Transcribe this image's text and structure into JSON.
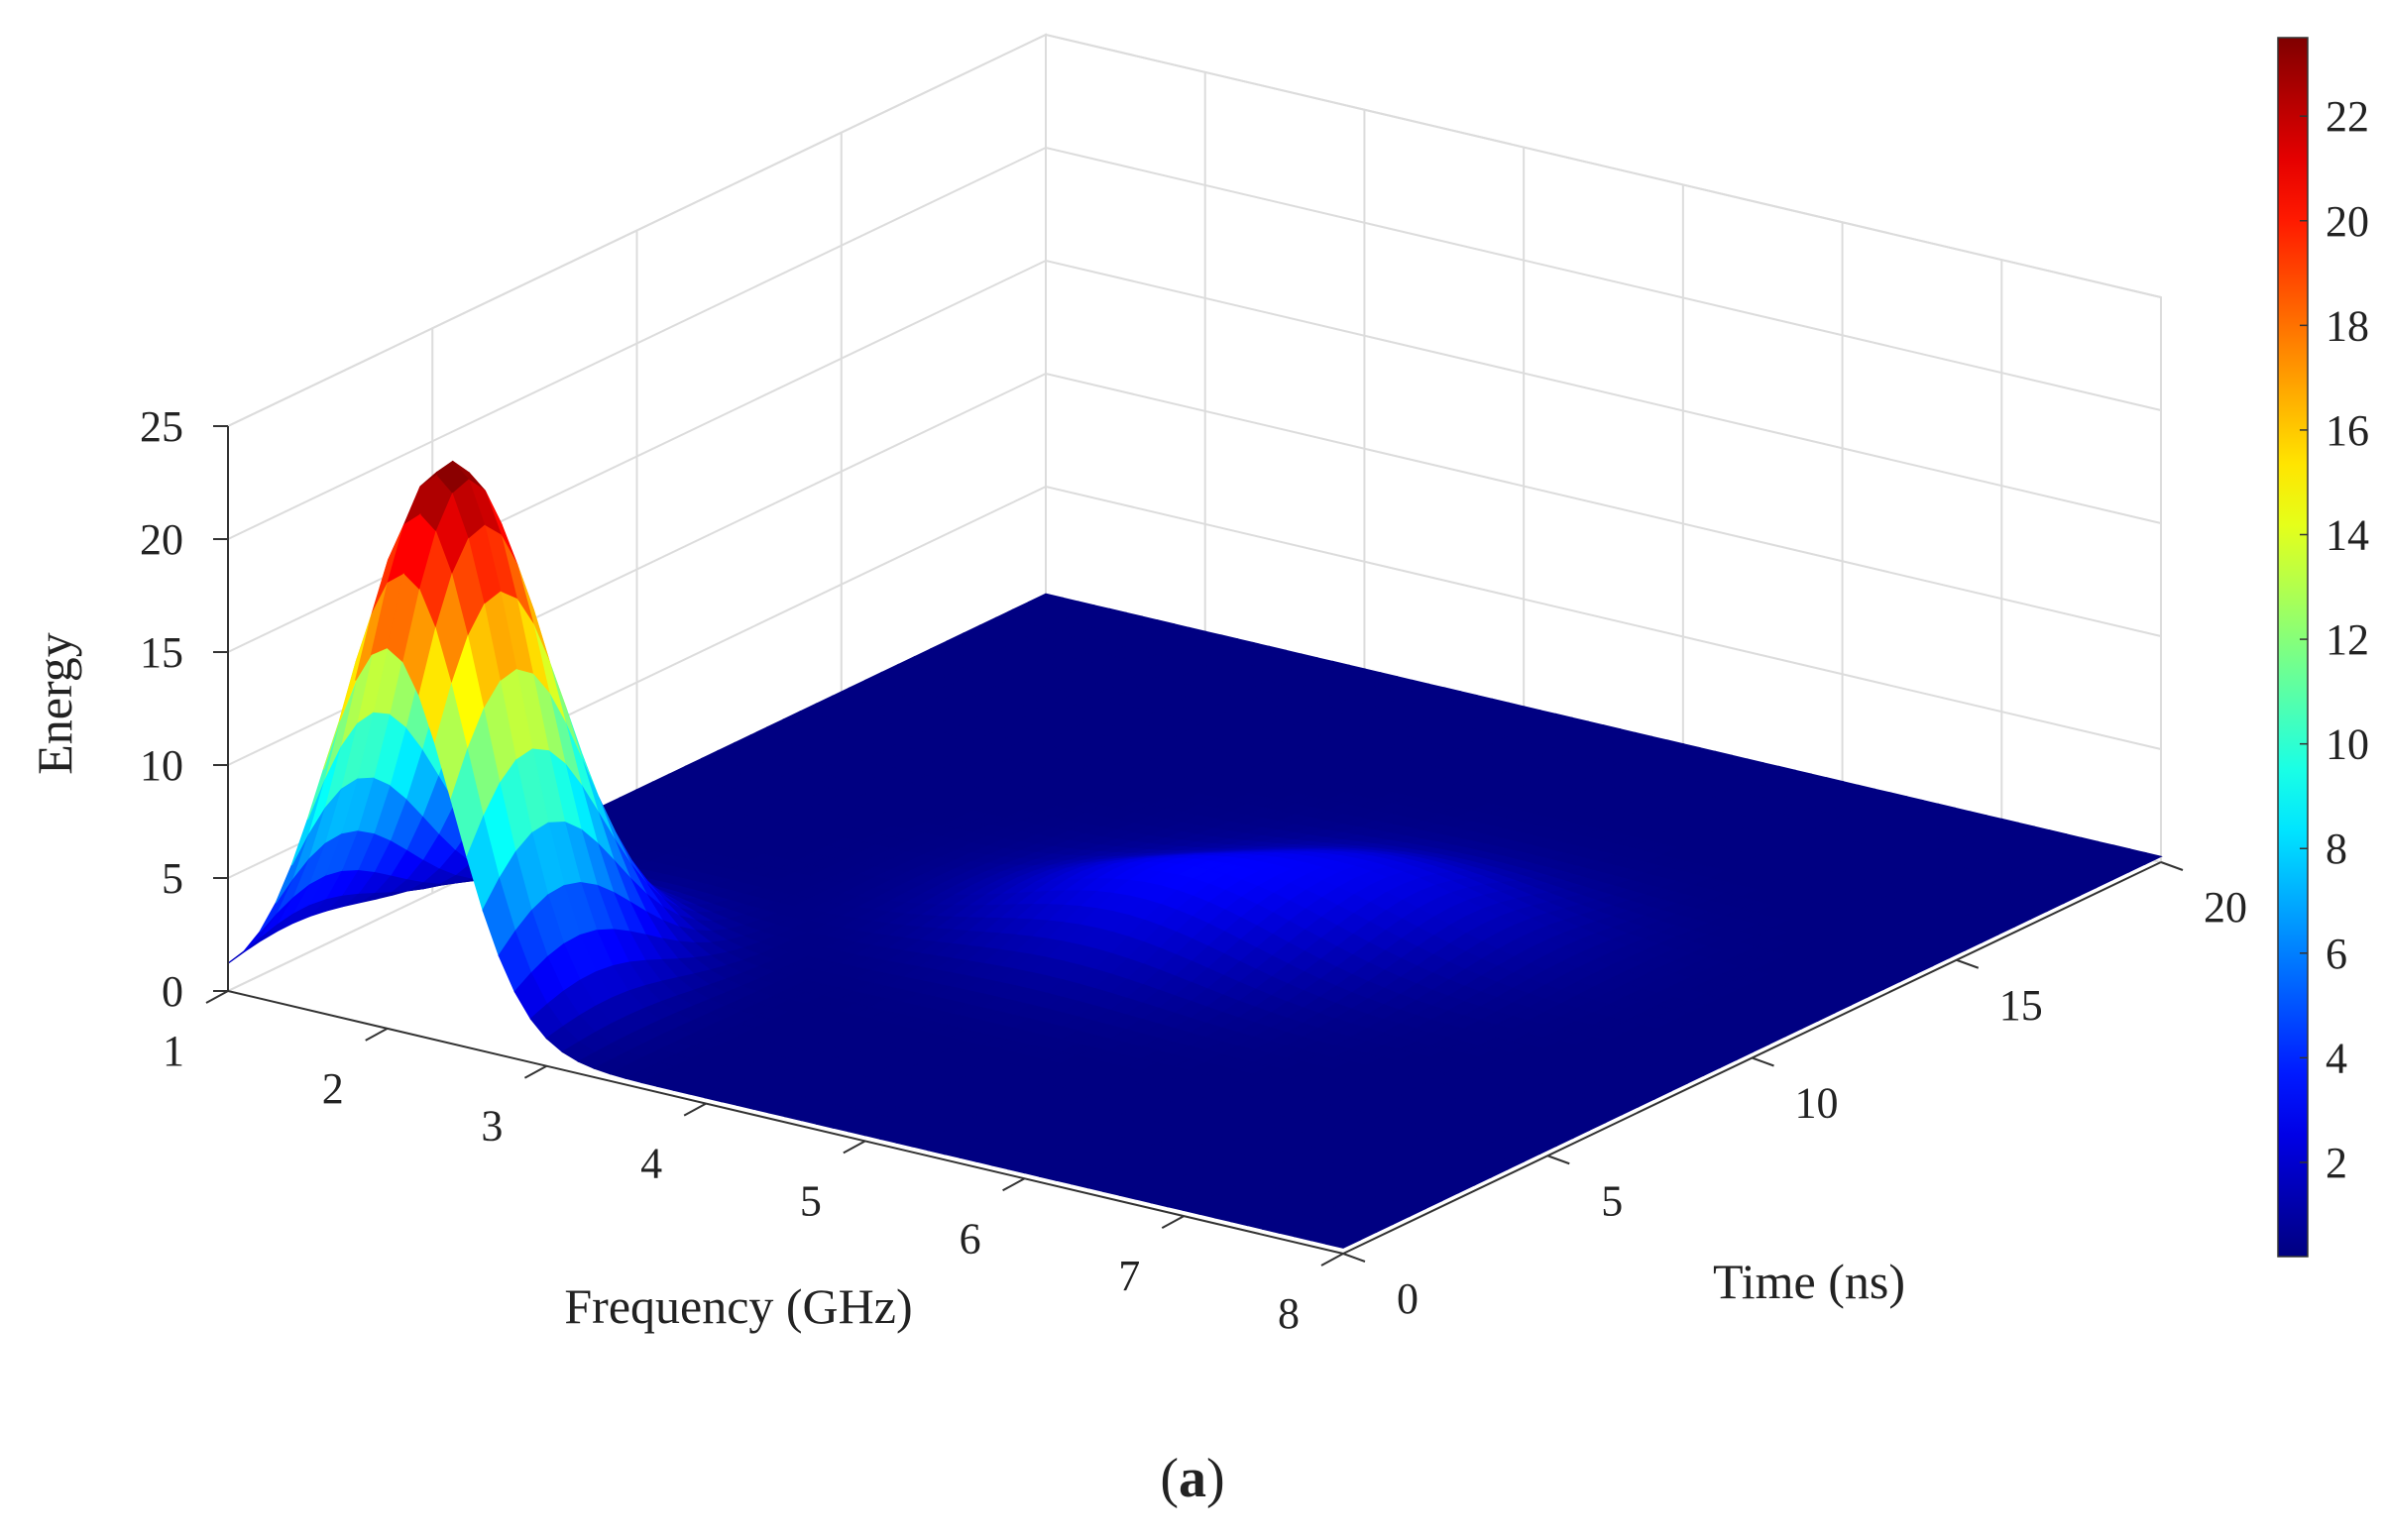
{
  "chart_data": {
    "type": "surface",
    "title": "",
    "xlabel": "Frequency (GHz)",
    "ylabel": "Time (ns)",
    "zlabel": "Energy",
    "xlim": [
      1,
      8
    ],
    "ylim": [
      0,
      20
    ],
    "zlim": [
      0,
      25
    ],
    "x_ticks": [
      "1",
      "2",
      "3",
      "4",
      "5",
      "6",
      "7",
      "8"
    ],
    "y_ticks": [
      "0",
      "5",
      "10",
      "15",
      "20"
    ],
    "z_ticks": [
      "0",
      "5",
      "10",
      "15",
      "20",
      "25"
    ],
    "grid": true,
    "colormap": "jet",
    "colorbar": {
      "range": [
        0.2,
        23.5
      ],
      "ticks": [
        "2",
        "4",
        "6",
        "8",
        "10",
        "12",
        "14",
        "16",
        "18",
        "20",
        "22"
      ],
      "position": "right"
    },
    "peaks": [
      {
        "frequency": 2.0,
        "time": 1.5,
        "energy": 23.5,
        "note": "main peak"
      },
      {
        "frequency": 4.5,
        "time": 9.0,
        "energy": 2.5,
        "note": "secondary peak"
      },
      {
        "frequency": 5.3,
        "time": 11.5,
        "energy": 2.0,
        "note": "secondary peak"
      }
    ]
  },
  "caption": {
    "open": "(",
    "letter": "a",
    "close": ")"
  }
}
